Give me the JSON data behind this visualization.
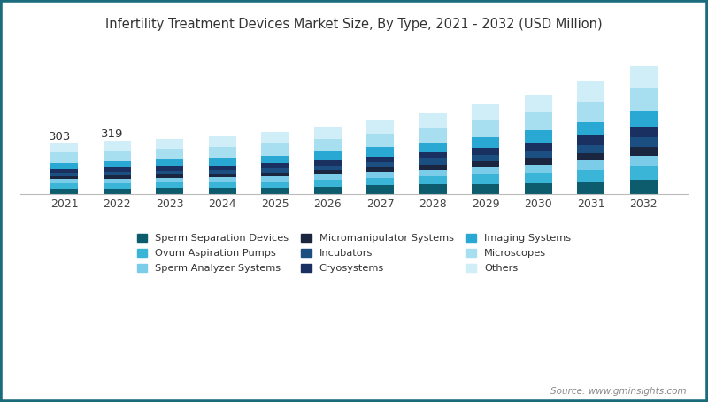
{
  "title": "Infertility Treatment Devices Market Size, By Type, 2021 - 2032 (USD Million)",
  "years": [
    2021,
    2022,
    2023,
    2024,
    2025,
    2026,
    2027,
    2028,
    2029,
    2030,
    2031,
    2032
  ],
  "source": "Source: www.gminsights.com",
  "annotations": {
    "2021": "303",
    "2022": "319"
  },
  "categories": [
    "Sperm Separation Devices",
    "Ovum Aspiration Pumps",
    "Sperm Analyzer Systems",
    "Micromanipulator Systems",
    "Incubators",
    "Cryosystems",
    "Imaging Systems",
    "Microscopes",
    "Others"
  ],
  "colors": [
    "#0d5c6e",
    "#3ab5d8",
    "#7bcce8",
    "#1a2540",
    "#1b4f82",
    "#1a3060",
    "#29a8d4",
    "#a8dff0",
    "#d0eef8"
  ],
  "data": {
    "Sperm Separation Devices": [
      34,
      36,
      37,
      38,
      41,
      47,
      53,
      58,
      62,
      68,
      76,
      87
    ],
    "Ovum Aspiration Pumps": [
      30,
      31,
      32,
      34,
      36,
      40,
      44,
      48,
      54,
      60,
      68,
      78
    ],
    "Sperm Analyzer Systems": [
      26,
      27,
      28,
      29,
      31,
      33,
      36,
      39,
      44,
      50,
      57,
      65
    ],
    "Micromanipulator Systems": [
      18,
      19,
      20,
      21,
      23,
      26,
      29,
      32,
      35,
      39,
      44,
      51
    ],
    "Incubators": [
      20,
      21,
      22,
      23,
      25,
      27,
      30,
      34,
      38,
      43,
      49,
      57
    ],
    "Cryosystems": [
      23,
      24,
      25,
      26,
      28,
      30,
      33,
      37,
      42,
      47,
      54,
      62
    ],
    "Imaging Systems": [
      38,
      40,
      41,
      43,
      46,
      50,
      54,
      59,
      65,
      73,
      82,
      94
    ],
    "Microscopes": [
      60,
      63,
      65,
      67,
      71,
      76,
      81,
      88,
      97,
      108,
      121,
      138
    ],
    "Others": [
      54,
      58,
      60,
      63,
      68,
      73,
      79,
      86,
      94,
      104,
      117,
      133
    ]
  },
  "background_color": "#ffffff",
  "border_color": "#1a6b7c",
  "ylim": [
    0,
    900
  ],
  "figsize": [
    8.0,
    4.54
  ],
  "dpi": 100
}
